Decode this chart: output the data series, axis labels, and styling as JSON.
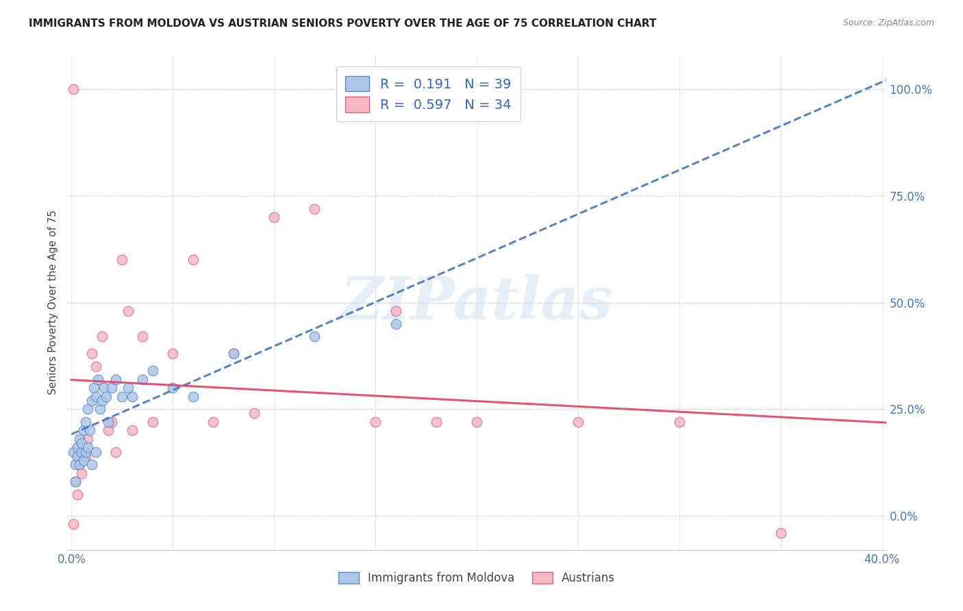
{
  "title": "IMMIGRANTS FROM MOLDOVA VS AUSTRIAN SENIORS POVERTY OVER THE AGE OF 75 CORRELATION CHART",
  "source": "Source: ZipAtlas.com",
  "ylabel": "Seniors Poverty Over the Age of 75",
  "xlim": [
    -0.002,
    0.402
  ],
  "ylim": [
    -0.08,
    1.08
  ],
  "x_tick_positions": [
    0.0,
    0.05,
    0.1,
    0.15,
    0.2,
    0.25,
    0.3,
    0.35,
    0.4
  ],
  "x_tick_labels": [
    "0.0%",
    "",
    "",
    "",
    "",
    "",
    "",
    "",
    "40.0%"
  ],
  "y_tick_positions": [
    0.0,
    0.25,
    0.5,
    0.75,
    1.0
  ],
  "y_tick_labels": [
    "0.0%",
    "25.0%",
    "50.0%",
    "75.0%",
    "100.0%"
  ],
  "R_blue": 0.191,
  "N_blue": 39,
  "R_pink": 0.597,
  "N_pink": 34,
  "legend_label_blue": "Immigrants from Moldova",
  "legend_label_pink": "Austrians",
  "blue_fill": "#aec6e8",
  "pink_fill": "#f5b8c4",
  "blue_edge": "#5588cc",
  "pink_edge": "#e06080",
  "blue_line": "#4477bb",
  "pink_line": "#dd4466",
  "watermark": "ZIPatlas",
  "blue_scatter_x": [
    0.001,
    0.002,
    0.002,
    0.003,
    0.003,
    0.004,
    0.004,
    0.005,
    0.005,
    0.006,
    0.006,
    0.007,
    0.007,
    0.008,
    0.008,
    0.009,
    0.01,
    0.01,
    0.011,
    0.012,
    0.012,
    0.013,
    0.014,
    0.015,
    0.016,
    0.017,
    0.018,
    0.02,
    0.022,
    0.025,
    0.028,
    0.03,
    0.035,
    0.04,
    0.05,
    0.06,
    0.08,
    0.12,
    0.16
  ],
  "blue_scatter_y": [
    0.15,
    0.08,
    0.12,
    0.14,
    0.16,
    0.12,
    0.18,
    0.15,
    0.17,
    0.13,
    0.2,
    0.15,
    0.22,
    0.16,
    0.25,
    0.2,
    0.12,
    0.27,
    0.3,
    0.15,
    0.28,
    0.32,
    0.25,
    0.27,
    0.3,
    0.28,
    0.22,
    0.3,
    0.32,
    0.28,
    0.3,
    0.28,
    0.32,
    0.34,
    0.3,
    0.28,
    0.38,
    0.42,
    0.45
  ],
  "pink_scatter_x": [
    0.001,
    0.002,
    0.003,
    0.004,
    0.005,
    0.006,
    0.007,
    0.008,
    0.01,
    0.012,
    0.015,
    0.018,
    0.02,
    0.022,
    0.025,
    0.028,
    0.03,
    0.035,
    0.04,
    0.05,
    0.06,
    0.07,
    0.08,
    0.09,
    0.1,
    0.12,
    0.15,
    0.16,
    0.18,
    0.2,
    0.25,
    0.3,
    0.35,
    0.001
  ],
  "pink_scatter_y": [
    -0.02,
    0.08,
    0.05,
    0.12,
    0.1,
    0.15,
    0.14,
    0.18,
    0.38,
    0.35,
    0.42,
    0.2,
    0.22,
    0.15,
    0.6,
    0.48,
    0.2,
    0.42,
    0.22,
    0.38,
    0.6,
    0.22,
    0.38,
    0.24,
    0.7,
    0.72,
    0.22,
    0.48,
    0.22,
    0.22,
    0.22,
    0.22,
    -0.04,
    1.0
  ]
}
